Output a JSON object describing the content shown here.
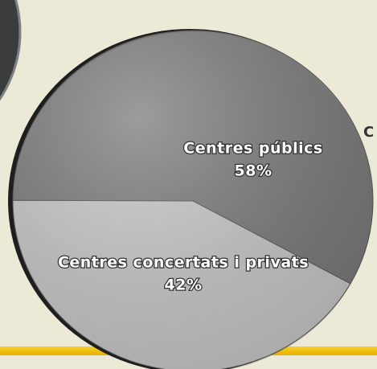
{
  "chart_data": {
    "type": "pie",
    "categories": [
      "Centres públics",
      "Centres concertats i privats"
    ],
    "values": [
      58,
      42
    ],
    "value_labels": [
      "58%",
      "42%"
    ],
    "colors": [
      "#7b7b7b",
      "#cacaca"
    ],
    "annotations": [
      "C"
    ]
  }
}
